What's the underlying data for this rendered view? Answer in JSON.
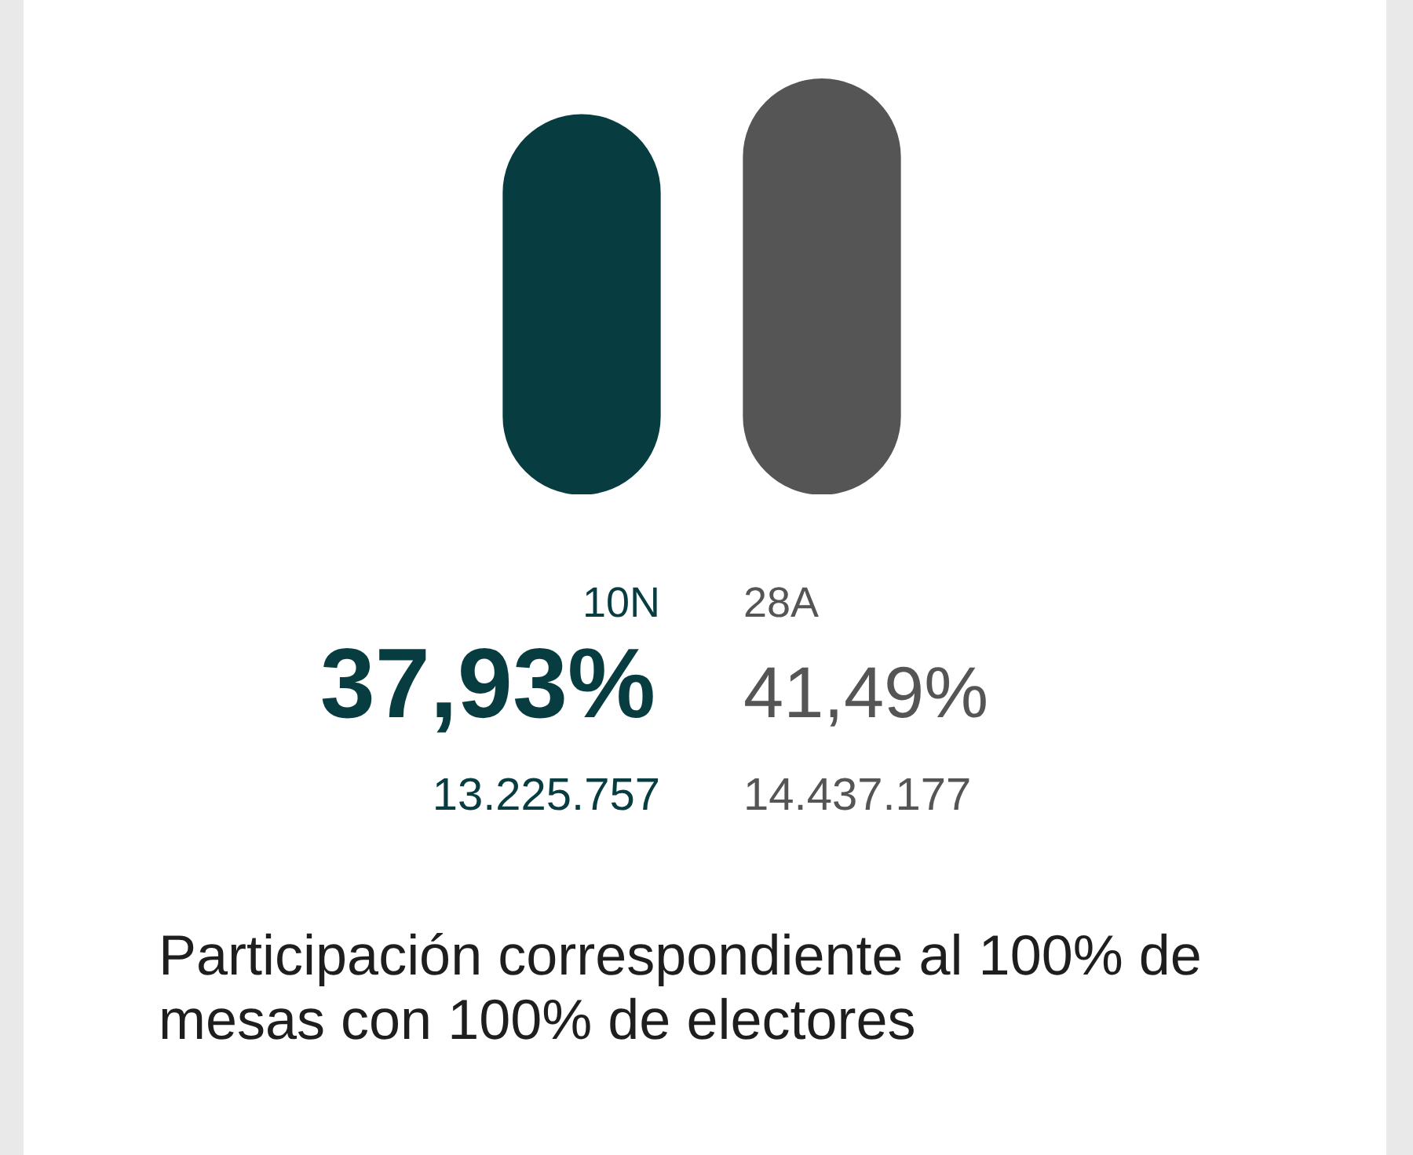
{
  "chart_data": {
    "type": "bar",
    "categories": [
      "10N",
      "28A"
    ],
    "values": [
      37.93,
      41.49
    ],
    "colors": [
      "#073d41",
      "#555555"
    ],
    "value_labels": [
      "37,93%",
      "41,49%"
    ],
    "tick_labels": "x",
    "annotations": [
      "13.225.757",
      "14.437.177",
      "Participación correspondiente al 100% de mesas con 100% de electores"
    ]
  }
}
